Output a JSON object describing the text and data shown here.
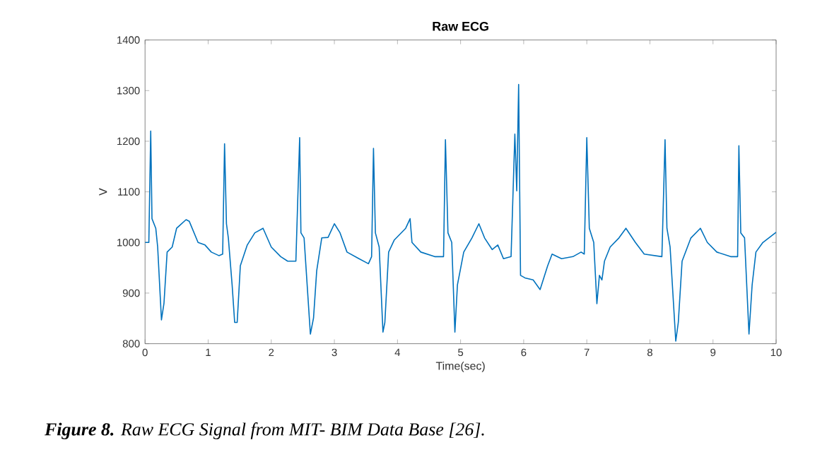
{
  "chart_data": {
    "type": "line",
    "title": "Raw ECG",
    "xlabel": "Time(sec)",
    "ylabel": "V",
    "annotations": [
      "**Figure 8.** Raw ECG Signal from MIT- BIM Data Base [26]."
    ],
    "xlim": [
      0,
      10
    ],
    "ylim": [
      800,
      1400
    ],
    "xticks": [
      0,
      1,
      2,
      3,
      4,
      5,
      6,
      7,
      8,
      9,
      10
    ],
    "yticks": [
      800,
      900,
      1000,
      1100,
      1200,
      1300,
      1400
    ],
    "grid": false,
    "marker": "none",
    "line_style": "solid",
    "series": [
      {
        "color": "#0072bd",
        "x": [
          0,
          0.06,
          0.09,
          0.11,
          0.17,
          0.2,
          0.26,
          0.3,
          0.35,
          0.43,
          0.5,
          0.65,
          0.7,
          0.84,
          0.95,
          1.05,
          1.17,
          1.23,
          1.26,
          1.29,
          1.32,
          1.38,
          1.42,
          1.46,
          1.51,
          1.62,
          1.74,
          1.87,
          2.0,
          2.15,
          2.26,
          2.39,
          2.45,
          2.47,
          2.52,
          2.62,
          2.67,
          2.72,
          2.8,
          2.9,
          3.0,
          3.09,
          3.2,
          3.39,
          3.54,
          3.59,
          3.62,
          3.65,
          3.71,
          3.77,
          3.8,
          3.86,
          3.95,
          4.13,
          4.2,
          4.23,
          4.37,
          4.59,
          4.73,
          4.76,
          4.8,
          4.86,
          4.91,
          4.95,
          5.05,
          5.18,
          5.29,
          5.38,
          5.5,
          5.59,
          5.68,
          5.8,
          5.86,
          5.89,
          5.92,
          5.95,
          6.02,
          6.15,
          6.26,
          6.38,
          6.45,
          6.6,
          6.78,
          6.91,
          6.96,
          7.0,
          7.04,
          7.11,
          7.16,
          7.2,
          7.24,
          7.28,
          7.37,
          7.51,
          7.62,
          7.77,
          7.91,
          8.19,
          8.24,
          8.27,
          8.32,
          8.41,
          8.45,
          8.51,
          8.65,
          8.8,
          8.91,
          9.06,
          9.28,
          9.39,
          9.41,
          9.44,
          9.5,
          9.57,
          9.62,
          9.68,
          9.79,
          10.0
        ],
        "values": [
          1000,
          1000,
          1220,
          1047,
          1028,
          991,
          847,
          880,
          981,
          991,
          1028,
          1045,
          1042,
          1000,
          995,
          981,
          974,
          977,
          1195,
          1037,
          1009,
          916,
          842,
          842,
          954,
          995,
          1019,
          1028,
          991,
          972,
          963,
          963,
          1207,
          1019,
          1009,
          819,
          851,
          944,
          1009,
          1010,
          1037,
          1019,
          981,
          968,
          958,
          972,
          1186,
          1019,
          991,
          823,
          842,
          981,
          1005,
          1028,
          1047,
          1000,
          981,
          972,
          972,
          1203,
          1019,
          1000,
          823,
          916,
          981,
          1009,
          1037,
          1009,
          986,
          995,
          968,
          972,
          1214,
          1102,
          1312,
          935,
          930,
          926,
          907,
          954,
          977,
          968,
          972,
          981,
          977,
          1207,
          1028,
          1000,
          879,
          935,
          926,
          963,
          991,
          1009,
          1028,
          1000,
          977,
          972,
          1203,
          1028,
          991,
          805,
          842,
          963,
          1009,
          1028,
          1000,
          981,
          972,
          972,
          1191,
          1019,
          1009,
          819,
          916,
          981,
          1000,
          1020
        ]
      }
    ]
  }
}
